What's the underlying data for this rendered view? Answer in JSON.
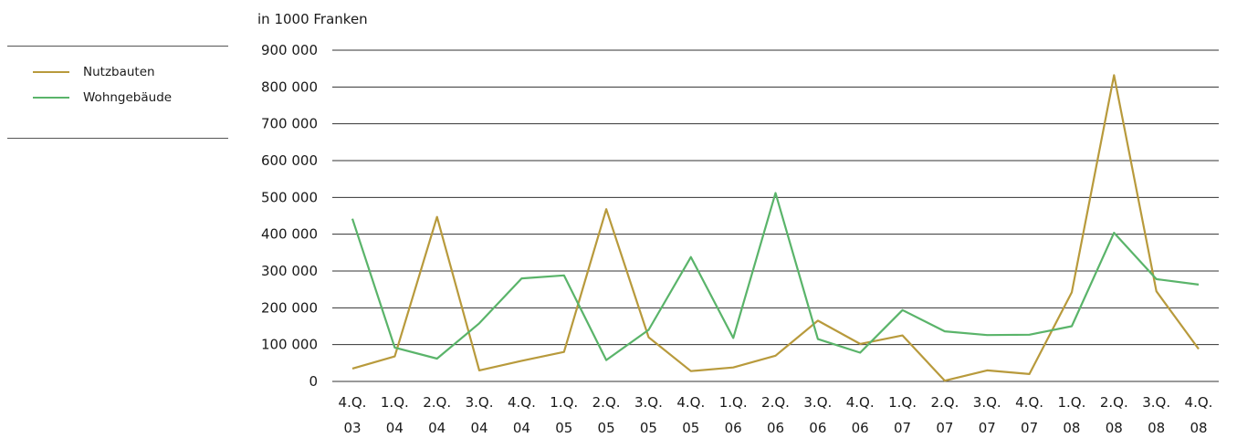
{
  "chart_data": {
    "type": "line",
    "unit_label": "in 1000 Franken",
    "categories": [
      [
        "4.Q.",
        "03"
      ],
      [
        "1.Q.",
        "04"
      ],
      [
        "2.Q.",
        "04"
      ],
      [
        "3.Q.",
        "04"
      ],
      [
        "4.Q.",
        "04"
      ],
      [
        "1.Q.",
        "05"
      ],
      [
        "2.Q.",
        "05"
      ],
      [
        "3.Q.",
        "05"
      ],
      [
        "4.Q.",
        "05"
      ],
      [
        "1.Q.",
        "06"
      ],
      [
        "2.Q.",
        "06"
      ],
      [
        "3.Q.",
        "06"
      ],
      [
        "4.Q.",
        "06"
      ],
      [
        "1.Q.",
        "07"
      ],
      [
        "2.Q.",
        "07"
      ],
      [
        "3.Q.",
        "07"
      ],
      [
        "4.Q.",
        "07"
      ],
      [
        "1.Q.",
        "08"
      ],
      [
        "2.Q.",
        "08"
      ],
      [
        "3.Q.",
        "08"
      ],
      [
        "4.Q.",
        "08"
      ]
    ],
    "ylim": [
      0,
      900000
    ],
    "yticks": [
      0,
      100000,
      200000,
      300000,
      400000,
      500000,
      600000,
      700000,
      800000,
      900000
    ],
    "ytick_labels": [
      "0",
      "100 000",
      "200 000",
      "300 000",
      "400 000",
      "500 000",
      "600 000",
      "700 000",
      "800 000",
      "900 000"
    ],
    "grid": "horizontal",
    "legend_position": "left",
    "series": [
      {
        "name": "Nutzbauten",
        "color": "#b89a3c",
        "values": [
          35000,
          68000,
          447000,
          30000,
          56000,
          80000,
          468000,
          120000,
          28000,
          38000,
          70000,
          165000,
          102000,
          125000,
          2000,
          30000,
          20000,
          242000,
          832000,
          245000,
          88000
        ]
      },
      {
        "name": "Wohngebäude",
        "color": "#5ab46a",
        "values": [
          442000,
          92000,
          62000,
          158000,
          280000,
          288000,
          58000,
          140000,
          338000,
          118000,
          512000,
          115000,
          78000,
          194000,
          136000,
          126000,
          127000,
          150000,
          404000,
          278000,
          263000
        ]
      }
    ]
  }
}
